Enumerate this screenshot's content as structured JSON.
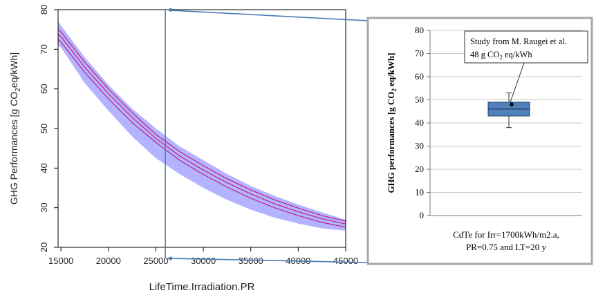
{
  "chart_data": [
    {
      "type": "line",
      "xlabel": "LifeTime.Irradiation.PR",
      "ylabel": "GHG Performances [g CO2eq/kWh]",
      "ylabel_parts": {
        "pre": "GHG Performances [g CO",
        "sub": "2",
        "post": "eq/kWh]"
      },
      "xlim": [
        14700,
        45000
      ],
      "ylim": [
        20,
        80
      ],
      "x_ticks": [
        "15000",
        "20000",
        "25000",
        "30000",
        "35000",
        "40000",
        "45000"
      ],
      "y_ticks": [
        "20",
        "30",
        "40",
        "50",
        "60",
        "70",
        "80"
      ],
      "x": [
        14700,
        15000,
        17500,
        20000,
        22500,
        25000,
        27500,
        30000,
        32500,
        35000,
        37500,
        40000,
        42500,
        45000
      ],
      "series": [
        {
          "role": "band-upper",
          "values": [
            77,
            76,
            68,
            61,
            55,
            50,
            45.5,
            42,
            38.5,
            35.5,
            33,
            30.8,
            28.8,
            27
          ]
        },
        {
          "role": "line-upper",
          "values": [
            75,
            74.4,
            66.8,
            60,
            54,
            48.5,
            44.2,
            40.6,
            37.3,
            34.5,
            32,
            29.9,
            28,
            26.6
          ]
        },
        {
          "role": "line-center",
          "values": [
            73.8,
            73.2,
            65.5,
            58.8,
            52.8,
            47.5,
            43.1,
            39.5,
            36.3,
            33.5,
            31,
            29,
            27.2,
            25.9
          ]
        },
        {
          "role": "line-lower",
          "values": [
            72.5,
            71.8,
            64.2,
            57.5,
            51.5,
            46.5,
            42,
            38.4,
            35.2,
            32.4,
            30,
            28,
            26.3,
            25.1
          ]
        },
        {
          "role": "band-lower",
          "values": [
            71,
            70.5,
            61.5,
            54.5,
            48,
            42.5,
            38.5,
            35,
            32,
            29.5,
            27.5,
            26,
            24.8,
            24.2
          ]
        }
      ],
      "colors": {
        "band": "#b3b3ff",
        "line": "#c02080"
      },
      "highlight_x": 26000
    },
    {
      "type": "box",
      "ylabel_parts": {
        "pre": "GHG performances [g CO",
        "sub": "2",
        "post": " eq/kWh]"
      },
      "ylim": [
        0,
        80
      ],
      "y_ticks": [
        "0",
        "10",
        "20",
        "30",
        "40",
        "50",
        "60",
        "70",
        "80"
      ],
      "category_lines": [
        "CdTe for Irr=1700kWh/m2.a,",
        "PR=0.75 and LT=20 y"
      ],
      "box": {
        "min": 38,
        "q1": 43,
        "median": 46,
        "q3": 49,
        "max": 53
      },
      "highlight_value": 48,
      "annotation": {
        "line1": "Study from M. Raugei et al.",
        "line2_parts": {
          "pre": "48 g CO",
          "sub": "2",
          "post": " eq/kWh"
        }
      },
      "colors": {
        "box": "#4f81bd",
        "frame": "#a6a6a6"
      }
    }
  ],
  "connector_color": "#4a7bb7"
}
